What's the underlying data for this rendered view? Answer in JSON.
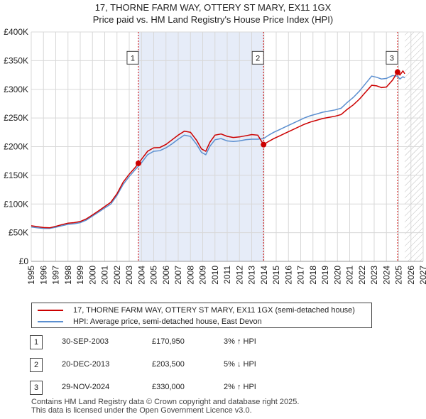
{
  "title_line1": "17, THORNE FARM WAY, OTTERY ST MARY, EX11 1GX",
  "title_line2": "Price paid vs. HM Land Registry's House Price Index (HPI)",
  "chart_data": {
    "type": "line",
    "title": "17, THORNE FARM WAY, OTTERY ST MARY, EX11 1GX — Price paid vs. HM Land Registry's House Price Index (HPI)",
    "xlim": [
      1995,
      2027
    ],
    "ylim": [
      0,
      400000
    ],
    "x_ticks": [
      1995,
      1996,
      1997,
      1998,
      1999,
      2000,
      2001,
      2002,
      2003,
      2004,
      2005,
      2006,
      2007,
      2008,
      2009,
      2010,
      2011,
      2012,
      2013,
      2014,
      2015,
      2016,
      2017,
      2018,
      2019,
      2020,
      2021,
      2022,
      2023,
      2024,
      2025,
      2026,
      2027
    ],
    "y_ticks": [
      0,
      50000,
      100000,
      150000,
      200000,
      250000,
      300000,
      350000,
      400000
    ],
    "y_tick_labels": [
      "£0",
      "£50K",
      "£100K",
      "£150K",
      "£200K",
      "£250K",
      "£300K",
      "£350K",
      "£400K"
    ],
    "grid": true,
    "shaded_interval": [
      2003.75,
      2013.97
    ],
    "hatched_from": 2025.5,
    "series": [
      {
        "name": "17, THORNE FARM WAY, OTTERY ST MARY, EX11 1GX (semi-detached house)",
        "color": "#cc0000",
        "points": [
          [
            1995.0,
            62000
          ],
          [
            1995.5,
            60500
          ],
          [
            1996.0,
            59000
          ],
          [
            1996.5,
            58500
          ],
          [
            1997.0,
            61000
          ],
          [
            1997.5,
            64000
          ],
          [
            1998.0,
            66500
          ],
          [
            1998.5,
            67500
          ],
          [
            1999.0,
            69500
          ],
          [
            1999.5,
            74000
          ],
          [
            2000.0,
            81000
          ],
          [
            2000.5,
            88000
          ],
          [
            2001.0,
            95500
          ],
          [
            2001.5,
            103000
          ],
          [
            2002.0,
            118000
          ],
          [
            2002.5,
            138000
          ],
          [
            2003.0,
            152000
          ],
          [
            2003.5,
            164000
          ],
          [
            2003.75,
            170950
          ],
          [
            2004.0,
            178000
          ],
          [
            2004.5,
            192000
          ],
          [
            2005.0,
            198000
          ],
          [
            2005.5,
            198500
          ],
          [
            2006.0,
            204000
          ],
          [
            2006.5,
            212000
          ],
          [
            2007.0,
            220000
          ],
          [
            2007.5,
            227000
          ],
          [
            2008.0,
            225000
          ],
          [
            2008.5,
            211000
          ],
          [
            2008.9,
            196000
          ],
          [
            2009.25,
            192000
          ],
          [
            2009.6,
            208000
          ],
          [
            2010.0,
            220000
          ],
          [
            2010.5,
            222000
          ],
          [
            2011.0,
            218000
          ],
          [
            2011.5,
            216000
          ],
          [
            2012.0,
            217000
          ],
          [
            2012.5,
            219000
          ],
          [
            2013.0,
            221000
          ],
          [
            2013.5,
            220000
          ],
          [
            2013.97,
            203500
          ],
          [
            2014.3,
            208000
          ],
          [
            2014.8,
            214000
          ],
          [
            2015.3,
            219000
          ],
          [
            2015.8,
            224000
          ],
          [
            2016.3,
            229000
          ],
          [
            2016.8,
            234000
          ],
          [
            2017.3,
            239000
          ],
          [
            2017.8,
            243000
          ],
          [
            2018.3,
            246000
          ],
          [
            2018.8,
            249000
          ],
          [
            2019.3,
            251000
          ],
          [
            2019.8,
            253000
          ],
          [
            2020.3,
            256000
          ],
          [
            2020.8,
            265000
          ],
          [
            2021.3,
            273000
          ],
          [
            2021.8,
            283000
          ],
          [
            2022.3,
            295000
          ],
          [
            2022.8,
            307000
          ],
          [
            2023.2,
            306000
          ],
          [
            2023.6,
            303000
          ],
          [
            2024.0,
            304000
          ],
          [
            2024.5,
            316000
          ],
          [
            2024.91,
            330000
          ],
          [
            2025.1,
            325000
          ],
          [
            2025.35,
            332000
          ],
          [
            2025.5,
            327000
          ]
        ]
      },
      {
        "name": "HPI: Average price, semi-detached house, East Devon",
        "color": "#5b8fd0",
        "points": [
          [
            1995.0,
            60000
          ],
          [
            1995.5,
            58500
          ],
          [
            1996.0,
            57500
          ],
          [
            1996.5,
            57500
          ],
          [
            1997.0,
            59500
          ],
          [
            1997.5,
            62000
          ],
          [
            1998.0,
            64500
          ],
          [
            1998.5,
            65500
          ],
          [
            1999.0,
            67500
          ],
          [
            1999.5,
            72000
          ],
          [
            2000.0,
            79000
          ],
          [
            2000.5,
            86000
          ],
          [
            2001.0,
            93000
          ],
          [
            2001.5,
            100000
          ],
          [
            2002.0,
            115000
          ],
          [
            2002.5,
            134000
          ],
          [
            2003.0,
            148000
          ],
          [
            2003.5,
            160000
          ],
          [
            2003.75,
            166000
          ],
          [
            2004.0,
            172000
          ],
          [
            2004.5,
            186000
          ],
          [
            2005.0,
            192000
          ],
          [
            2005.5,
            193000
          ],
          [
            2006.0,
            198000
          ],
          [
            2006.5,
            205000
          ],
          [
            2007.0,
            213000
          ],
          [
            2007.5,
            220000
          ],
          [
            2008.0,
            218000
          ],
          [
            2008.5,
            204000
          ],
          [
            2008.9,
            190000
          ],
          [
            2009.25,
            186000
          ],
          [
            2009.6,
            201000
          ],
          [
            2010.0,
            212000
          ],
          [
            2010.5,
            214000
          ],
          [
            2011.0,
            210000
          ],
          [
            2011.5,
            209000
          ],
          [
            2012.0,
            210000
          ],
          [
            2012.5,
            212000
          ],
          [
            2013.0,
            213000
          ],
          [
            2013.5,
            213000
          ],
          [
            2013.97,
            214000
          ],
          [
            2014.3,
            219000
          ],
          [
            2014.8,
            225000
          ],
          [
            2015.3,
            230000
          ],
          [
            2015.8,
            235000
          ],
          [
            2016.3,
            240000
          ],
          [
            2016.8,
            245000
          ],
          [
            2017.3,
            250000
          ],
          [
            2017.8,
            254000
          ],
          [
            2018.3,
            257000
          ],
          [
            2018.8,
            260000
          ],
          [
            2019.3,
            262000
          ],
          [
            2019.8,
            264000
          ],
          [
            2020.3,
            267000
          ],
          [
            2020.8,
            277000
          ],
          [
            2021.3,
            286000
          ],
          [
            2021.8,
            297000
          ],
          [
            2022.3,
            310000
          ],
          [
            2022.8,
            323000
          ],
          [
            2023.2,
            321000
          ],
          [
            2023.6,
            318000
          ],
          [
            2024.0,
            319000
          ],
          [
            2024.5,
            324000
          ],
          [
            2024.91,
            323000
          ],
          [
            2025.1,
            318000
          ],
          [
            2025.35,
            322000
          ],
          [
            2025.5,
            320000
          ]
        ]
      }
    ],
    "sales": [
      {
        "num": "1",
        "x": 2003.75,
        "y": 170950
      },
      {
        "num": "2",
        "x": 2013.97,
        "y": 203500
      },
      {
        "num": "3",
        "x": 2024.91,
        "y": 330000
      }
    ],
    "sale_box_y": 355000
  },
  "legend": {
    "property_label": "17, THORNE FARM WAY, OTTERY ST MARY, EX11 1GX (semi-detached house)",
    "hpi_label": "HPI: Average price, semi-detached house, East Devon",
    "property_color": "#cc0000",
    "hpi_color": "#5b8fd0"
  },
  "sales_table": [
    {
      "num": "1",
      "date": "30-SEP-2003",
      "price": "£170,950",
      "hpi": "3% ↑ HPI"
    },
    {
      "num": "2",
      "date": "20-DEC-2013",
      "price": "£203,500",
      "hpi": "5% ↓ HPI"
    },
    {
      "num": "3",
      "date": "29-NOV-2024",
      "price": "£330,000",
      "hpi": "2% ↑ HPI"
    }
  ],
  "footer_line1": "Contains HM Land Registry data © Crown copyright and database right 2025.",
  "footer_line2": "This data is licensed under the Open Government Licence v3.0."
}
